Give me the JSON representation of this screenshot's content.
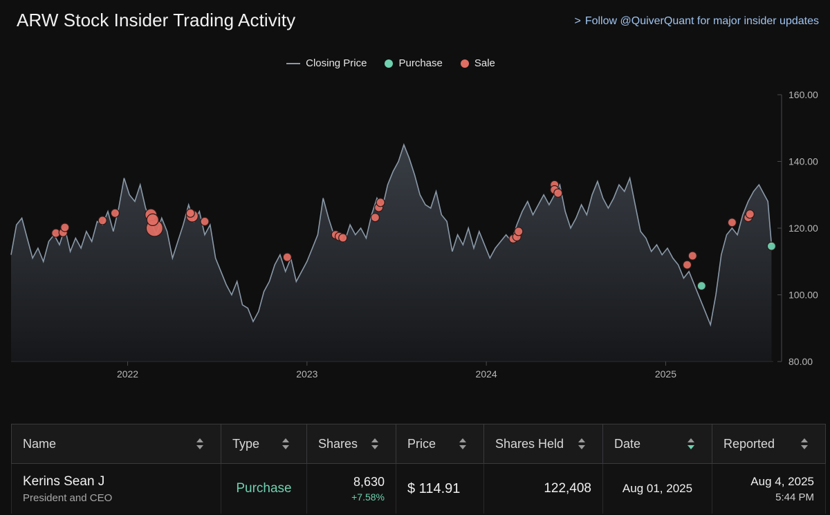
{
  "header": {
    "title": "ARW Stock Insider Trading Activity",
    "follow_chevron": ">",
    "follow_text": "Follow @QuiverQuant for major insider updates"
  },
  "legend": [
    {
      "label": "Closing Price",
      "kind": "line",
      "color": "#8a99a8"
    },
    {
      "label": "Purchase",
      "kind": "dot",
      "color": "#6fd1b0"
    },
    {
      "label": "Sale",
      "kind": "dot",
      "color": "#e06e63"
    }
  ],
  "chart_data": {
    "type": "line",
    "title": "ARW Stock Insider Trading Activity",
    "xlabel": "",
    "ylabel": "",
    "x_range": [
      2021.35,
      2025.6
    ],
    "ylim": [
      80,
      160
    ],
    "y_ticks": [
      "80.00",
      "100.00",
      "120.00",
      "140.00",
      "160.00"
    ],
    "x_ticks": [
      {
        "value": 2022,
        "label": "2022"
      },
      {
        "value": 2023,
        "label": "2023"
      },
      {
        "value": 2024,
        "label": "2024"
      },
      {
        "value": 2025,
        "label": "2025"
      }
    ],
    "price_series": {
      "name": "Closing Price",
      "points": [
        [
          2021.35,
          112
        ],
        [
          2021.38,
          121
        ],
        [
          2021.41,
          123
        ],
        [
          2021.44,
          117
        ],
        [
          2021.47,
          111
        ],
        [
          2021.5,
          114
        ],
        [
          2021.53,
          110
        ],
        [
          2021.56,
          116
        ],
        [
          2021.59,
          118
        ],
        [
          2021.62,
          115
        ],
        [
          2021.65,
          120
        ],
        [
          2021.68,
          113
        ],
        [
          2021.71,
          117
        ],
        [
          2021.74,
          114
        ],
        [
          2021.77,
          119
        ],
        [
          2021.8,
          116
        ],
        [
          2021.83,
          122
        ],
        [
          2021.86,
          121
        ],
        [
          2021.89,
          125
        ],
        [
          2021.92,
          119
        ],
        [
          2021.95,
          126
        ],
        [
          2021.98,
          135
        ],
        [
          2022.01,
          130
        ],
        [
          2022.04,
          128
        ],
        [
          2022.07,
          133
        ],
        [
          2022.1,
          126
        ],
        [
          2022.13,
          122
        ],
        [
          2022.16,
          118
        ],
        [
          2022.19,
          123
        ],
        [
          2022.22,
          119
        ],
        [
          2022.25,
          111
        ],
        [
          2022.28,
          116
        ],
        [
          2022.31,
          121
        ],
        [
          2022.34,
          127
        ],
        [
          2022.37,
          122
        ],
        [
          2022.4,
          125
        ],
        [
          2022.43,
          118
        ],
        [
          2022.46,
          121
        ],
        [
          2022.49,
          111
        ],
        [
          2022.52,
          107
        ],
        [
          2022.55,
          103
        ],
        [
          2022.58,
          100
        ],
        [
          2022.61,
          104
        ],
        [
          2022.64,
          97
        ],
        [
          2022.67,
          96
        ],
        [
          2022.7,
          92
        ],
        [
          2022.73,
          95
        ],
        [
          2022.76,
          101
        ],
        [
          2022.79,
          104
        ],
        [
          2022.82,
          109
        ],
        [
          2022.85,
          112
        ],
        [
          2022.88,
          107
        ],
        [
          2022.91,
          111
        ],
        [
          2022.94,
          104
        ],
        [
          2022.97,
          107
        ],
        [
          2023.0,
          110
        ],
        [
          2023.03,
          114
        ],
        [
          2023.06,
          118
        ],
        [
          2023.09,
          129
        ],
        [
          2023.12,
          123
        ],
        [
          2023.15,
          118
        ],
        [
          2023.18,
          117
        ],
        [
          2023.21,
          116
        ],
        [
          2023.24,
          121
        ],
        [
          2023.27,
          118
        ],
        [
          2023.3,
          120
        ],
        [
          2023.33,
          117
        ],
        [
          2023.36,
          124
        ],
        [
          2023.39,
          129
        ],
        [
          2023.42,
          126
        ],
        [
          2023.45,
          133
        ],
        [
          2023.48,
          137
        ],
        [
          2023.51,
          140
        ],
        [
          2023.54,
          145
        ],
        [
          2023.57,
          141
        ],
        [
          2023.6,
          136
        ],
        [
          2023.63,
          130
        ],
        [
          2023.66,
          127
        ],
        [
          2023.69,
          126
        ],
        [
          2023.72,
          131
        ],
        [
          2023.75,
          124
        ],
        [
          2023.78,
          122
        ],
        [
          2023.81,
          113
        ],
        [
          2023.84,
          118
        ],
        [
          2023.87,
          115
        ],
        [
          2023.9,
          120
        ],
        [
          2023.93,
          114
        ],
        [
          2023.96,
          119
        ],
        [
          2023.99,
          115
        ],
        [
          2024.02,
          111
        ],
        [
          2024.05,
          114
        ],
        [
          2024.08,
          116
        ],
        [
          2024.11,
          118
        ],
        [
          2024.14,
          116
        ],
        [
          2024.17,
          121
        ],
        [
          2024.2,
          125
        ],
        [
          2024.23,
          128
        ],
        [
          2024.26,
          124
        ],
        [
          2024.29,
          127
        ],
        [
          2024.32,
          130
        ],
        [
          2024.35,
          127
        ],
        [
          2024.38,
          130
        ],
        [
          2024.41,
          133
        ],
        [
          2024.44,
          125
        ],
        [
          2024.47,
          120
        ],
        [
          2024.5,
          123
        ],
        [
          2024.53,
          127
        ],
        [
          2024.56,
          124
        ],
        [
          2024.59,
          130
        ],
        [
          2024.62,
          134
        ],
        [
          2024.65,
          129
        ],
        [
          2024.68,
          126
        ],
        [
          2024.71,
          129
        ],
        [
          2024.74,
          133
        ],
        [
          2024.77,
          131
        ],
        [
          2024.8,
          135
        ],
        [
          2024.83,
          127
        ],
        [
          2024.86,
          119
        ],
        [
          2024.89,
          117
        ],
        [
          2024.92,
          113
        ],
        [
          2024.95,
          115
        ],
        [
          2024.98,
          112
        ],
        [
          2025.01,
          114
        ],
        [
          2025.04,
          111
        ],
        [
          2025.07,
          109
        ],
        [
          2025.1,
          105
        ],
        [
          2025.13,
          107
        ],
        [
          2025.16,
          103
        ],
        [
          2025.19,
          99
        ],
        [
          2025.22,
          95
        ],
        [
          2025.25,
          91
        ],
        [
          2025.28,
          100
        ],
        [
          2025.31,
          112
        ],
        [
          2025.34,
          118
        ],
        [
          2025.37,
          120
        ],
        [
          2025.4,
          118
        ],
        [
          2025.43,
          124
        ],
        [
          2025.46,
          128
        ],
        [
          2025.49,
          131
        ],
        [
          2025.52,
          133
        ],
        [
          2025.55,
          130
        ],
        [
          2025.57,
          128
        ],
        [
          2025.59,
          115
        ]
      ]
    },
    "trades": [
      {
        "kind": "sale",
        "x": 2021.6,
        "y": 118.5,
        "size": 1
      },
      {
        "kind": "sale",
        "x": 2021.64,
        "y": 118.7,
        "size": 1
      },
      {
        "kind": "sale",
        "x": 2021.65,
        "y": 120.2,
        "size": 1
      },
      {
        "kind": "sale",
        "x": 2021.86,
        "y": 122.3,
        "size": 1
      },
      {
        "kind": "sale",
        "x": 2021.93,
        "y": 124.5,
        "size": 1
      },
      {
        "kind": "sale",
        "x": 2022.13,
        "y": 124.0,
        "size": 2
      },
      {
        "kind": "sale",
        "x": 2022.14,
        "y": 122.5,
        "size": 2
      },
      {
        "kind": "sale",
        "x": 2022.15,
        "y": 120.0,
        "size": 3
      },
      {
        "kind": "sale",
        "x": 2022.35,
        "y": 124.5,
        "size": 1
      },
      {
        "kind": "sale",
        "x": 2022.36,
        "y": 123.6,
        "size": 2
      },
      {
        "kind": "sale",
        "x": 2022.43,
        "y": 122.0,
        "size": 1
      },
      {
        "kind": "sale",
        "x": 2022.89,
        "y": 111.3,
        "size": 1
      },
      {
        "kind": "sale",
        "x": 2023.16,
        "y": 118.0,
        "size": 1
      },
      {
        "kind": "sale",
        "x": 2023.18,
        "y": 117.5,
        "size": 1
      },
      {
        "kind": "sale",
        "x": 2023.2,
        "y": 117.1,
        "size": 1
      },
      {
        "kind": "sale",
        "x": 2023.38,
        "y": 123.2,
        "size": 1
      },
      {
        "kind": "sale",
        "x": 2023.4,
        "y": 126.2,
        "size": 1
      },
      {
        "kind": "sale",
        "x": 2023.41,
        "y": 127.7,
        "size": 1
      },
      {
        "kind": "sale",
        "x": 2024.15,
        "y": 116.8,
        "size": 1
      },
      {
        "kind": "sale",
        "x": 2024.17,
        "y": 117.4,
        "size": 1
      },
      {
        "kind": "sale",
        "x": 2024.18,
        "y": 119.0,
        "size": 1
      },
      {
        "kind": "sale",
        "x": 2024.38,
        "y": 133.0,
        "size": 1
      },
      {
        "kind": "sale",
        "x": 2024.38,
        "y": 131.5,
        "size": 1
      },
      {
        "kind": "sale",
        "x": 2024.4,
        "y": 130.5,
        "size": 1
      },
      {
        "kind": "sale",
        "x": 2025.12,
        "y": 109.0,
        "size": 1
      },
      {
        "kind": "sale",
        "x": 2025.15,
        "y": 111.7,
        "size": 1
      },
      {
        "kind": "purchase",
        "x": 2025.2,
        "y": 102.7,
        "size": 1
      },
      {
        "kind": "sale",
        "x": 2025.37,
        "y": 121.7,
        "size": 1
      },
      {
        "kind": "sale",
        "x": 2025.46,
        "y": 123.2,
        "size": 1
      },
      {
        "kind": "sale",
        "x": 2025.47,
        "y": 124.2,
        "size": 1
      },
      {
        "kind": "purchase",
        "x": 2025.59,
        "y": 114.6,
        "size": 1
      }
    ]
  },
  "table": {
    "columns": [
      "Name",
      "Type",
      "Shares",
      "Price",
      "Shares Held",
      "Date",
      "Reported"
    ],
    "active_sort_column": "Date",
    "rows": [
      {
        "name": "Kerins Sean J",
        "title": "President and CEO",
        "type": "Purchase",
        "shares": "8,630",
        "shares_change": "+7.58%",
        "price": "$ 114.91",
        "shares_held": "122,408",
        "date": "Aug 01, 2025",
        "reported_date": "Aug 4, 2025",
        "reported_time": "5:44 PM"
      }
    ]
  }
}
